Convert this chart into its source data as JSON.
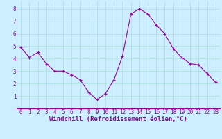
{
  "x": [
    0,
    1,
    2,
    3,
    4,
    5,
    6,
    7,
    8,
    9,
    10,
    11,
    12,
    13,
    14,
    15,
    16,
    17,
    18,
    19,
    20,
    21,
    22,
    23
  ],
  "y": [
    4.9,
    4.1,
    4.5,
    3.6,
    3.0,
    3.0,
    2.7,
    2.3,
    1.3,
    0.7,
    1.2,
    2.3,
    4.2,
    7.6,
    8.0,
    7.6,
    6.7,
    6.0,
    4.8,
    4.1,
    3.6,
    3.5,
    2.8,
    2.1
  ],
  "line_color": "#990099",
  "marker": "+",
  "marker_color": "#990099",
  "bg_color": "#cceeff",
  "grid_color": "#aadddd",
  "xlabel": "Windchill (Refroidissement éolien,°C)",
  "xlabel_color": "#990099",
  "tick_color": "#990099",
  "xlim": [
    -0.5,
    23.5
  ],
  "ylim": [
    0,
    8.6
  ],
  "yticks": [
    1,
    2,
    3,
    4,
    5,
    6,
    7,
    8
  ],
  "xticks": [
    0,
    1,
    2,
    3,
    4,
    5,
    6,
    7,
    8,
    9,
    10,
    11,
    12,
    13,
    14,
    15,
    16,
    17,
    18,
    19,
    20,
    21,
    22,
    23
  ],
  "axis_label_fontsize": 6.5,
  "tick_fontsize": 5.5
}
